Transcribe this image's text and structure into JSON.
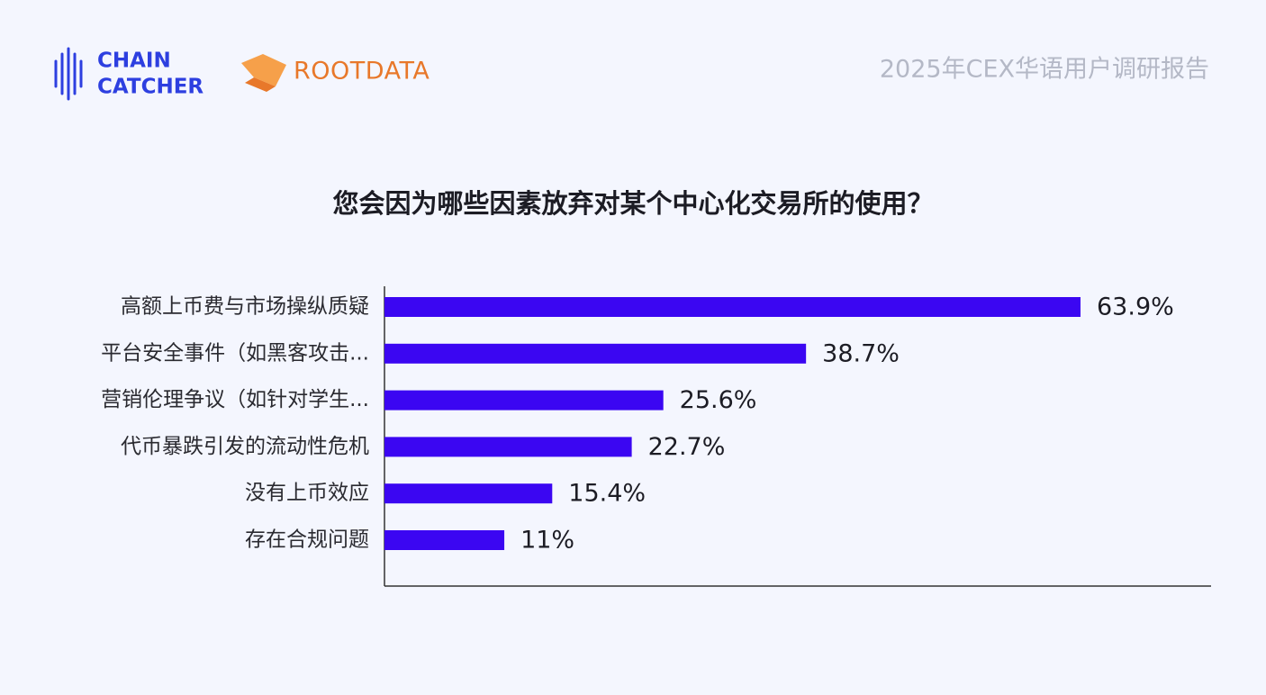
{
  "header": {
    "brand_left": [
      "CHAIN",
      "CATCHER"
    ],
    "brand_right": "ROOTDATA",
    "report_title": "2025年CEX华语用户调研报告"
  },
  "chart_data": {
    "type": "bar",
    "orientation": "horizontal",
    "title": "您会因为哪些因素放弃对某个中心化交易所的使用？",
    "categories": [
      "高额上币费与市场操纵质疑",
      "平台安全事件（如黑客攻击...",
      "营销伦理争议（如针对学生...",
      "代币暴跌引发的流动性危机",
      "没有上币效应",
      "存在合规问题"
    ],
    "values": [
      63.9,
      38.7,
      25.6,
      22.7,
      15.4,
      11
    ],
    "value_labels": [
      "63.9%",
      "38.7%",
      "25.6%",
      "22.7%",
      "15.4%",
      "11%"
    ],
    "color": "#3b06f2"
  }
}
